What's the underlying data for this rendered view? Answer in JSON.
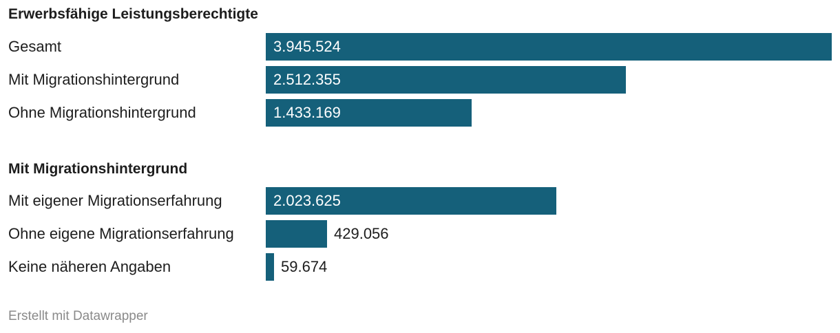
{
  "chart_data": {
    "type": "bar",
    "orientation": "horizontal",
    "color": "#15607a",
    "sections": [
      {
        "title": "Erwerbsfähige Leistungsberechtigte",
        "rows": [
          {
            "label": "Gesamt",
            "value": 3945524,
            "display": "3.945.524"
          },
          {
            "label": "Mit Migrationshintergrund",
            "value": 2512355,
            "display": "2.512.355"
          },
          {
            "label": "Ohne Migrationshintergrund",
            "value": 1433169,
            "display": "1.433.169"
          }
        ]
      },
      {
        "title": "Mit Migrationshintergrund",
        "rows": [
          {
            "label": "Mit eigener Migrationserfahrung",
            "value": 2023625,
            "display": "2.023.625"
          },
          {
            "label": "Ohne eigene Migrationserfahrung",
            "value": 429056,
            "display": "429.056"
          },
          {
            "label": "Keine näheren Angaben",
            "value": 59674,
            "display": "59.674"
          }
        ]
      }
    ],
    "xlim": [
      0,
      3945524
    ]
  },
  "footer": "Erstellt mit Datawrapper"
}
